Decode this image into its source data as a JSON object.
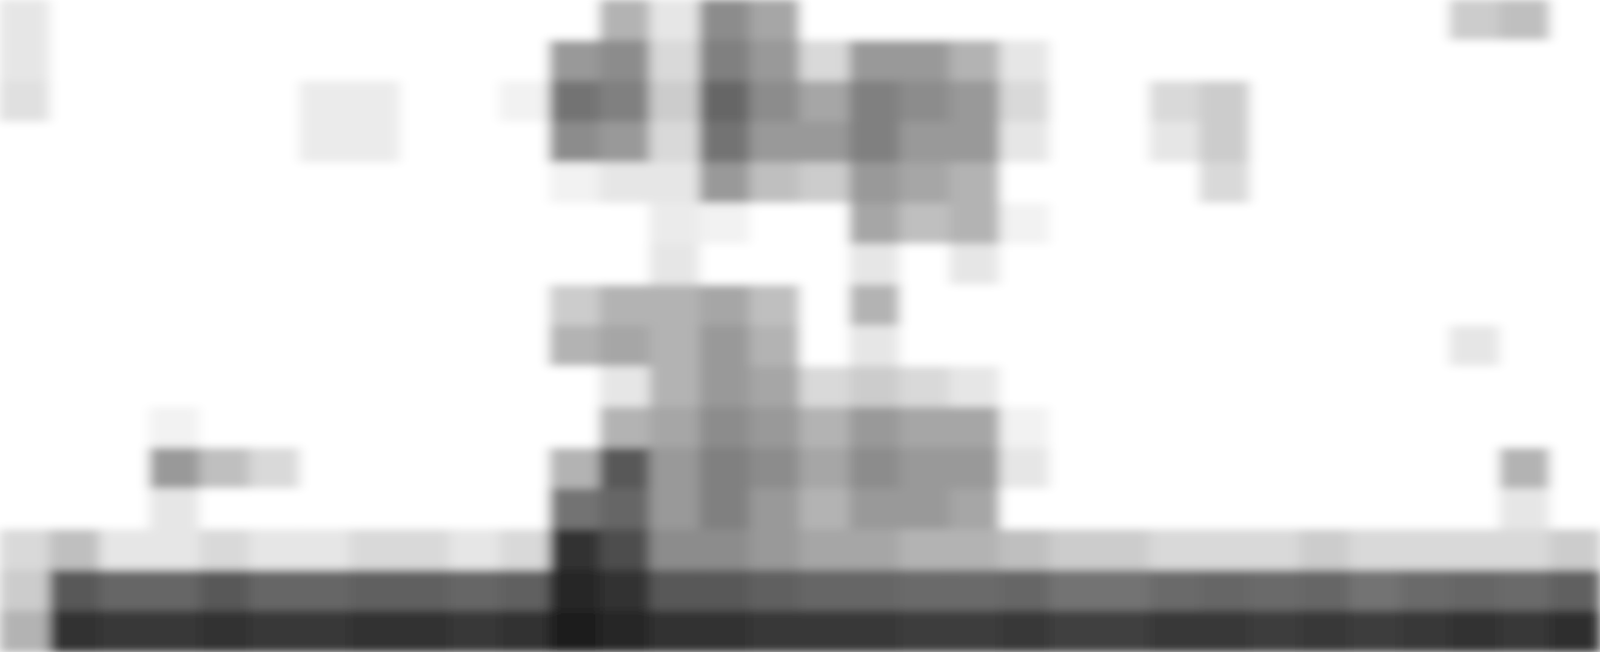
{
  "chart_data": {
    "type": "heatmap",
    "tick_labels": false,
    "color": "#000000",
    "zlim": [
      0,
      100
    ],
    "cells": [
      [
        10,
        0,
        0,
        0,
        0,
        0,
        0,
        0,
        0,
        0,
        0,
        0,
        30,
        10,
        45,
        35,
        0,
        0,
        0,
        0,
        0,
        0,
        0,
        0,
        0,
        0,
        0,
        0,
        0,
        20,
        25,
        0
      ],
      [
        10,
        0,
        0,
        0,
        0,
        0,
        0,
        0,
        0,
        0,
        0,
        40,
        45,
        15,
        50,
        40,
        15,
        40,
        40,
        30,
        10,
        0,
        0,
        0,
        0,
        0,
        0,
        0,
        0,
        0,
        0,
        0
      ],
      [
        12,
        0,
        0,
        0,
        0,
        0,
        8,
        8,
        0,
        0,
        5,
        55,
        50,
        20,
        60,
        45,
        35,
        50,
        45,
        40,
        15,
        0,
        0,
        15,
        20,
        0,
        0,
        0,
        0,
        0,
        0,
        0
      ],
      [
        0,
        0,
        0,
        0,
        0,
        0,
        8,
        8,
        0,
        0,
        0,
        45,
        40,
        15,
        55,
        40,
        40,
        50,
        40,
        40,
        10,
        0,
        0,
        10,
        20,
        0,
        0,
        0,
        0,
        0,
        0,
        0
      ],
      [
        0,
        0,
        0,
        0,
        0,
        0,
        0,
        0,
        0,
        0,
        0,
        5,
        10,
        10,
        40,
        25,
        20,
        40,
        35,
        30,
        0,
        0,
        0,
        0,
        15,
        0,
        0,
        0,
        0,
        0,
        0,
        0
      ],
      [
        0,
        0,
        0,
        0,
        0,
        0,
        0,
        0,
        0,
        0,
        0,
        0,
        0,
        8,
        5,
        0,
        0,
        35,
        25,
        30,
        5,
        0,
        0,
        0,
        0,
        0,
        0,
        0,
        0,
        0,
        0,
        0
      ],
      [
        0,
        0,
        0,
        0,
        0,
        0,
        0,
        0,
        0,
        0,
        0,
        0,
        0,
        10,
        0,
        0,
        0,
        10,
        0,
        10,
        0,
        0,
        0,
        0,
        0,
        0,
        0,
        0,
        0,
        0,
        0,
        0
      ],
      [
        0,
        0,
        0,
        0,
        0,
        0,
        0,
        0,
        0,
        0,
        0,
        20,
        30,
        30,
        35,
        25,
        0,
        30,
        0,
        0,
        0,
        0,
        0,
        0,
        0,
        0,
        0,
        0,
        0,
        0,
        0,
        0
      ],
      [
        0,
        0,
        0,
        0,
        0,
        0,
        0,
        0,
        0,
        0,
        0,
        30,
        35,
        30,
        40,
        30,
        0,
        10,
        0,
        0,
        0,
        0,
        0,
        0,
        0,
        0,
        0,
        0,
        0,
        10,
        0,
        0
      ],
      [
        0,
        0,
        0,
        0,
        0,
        0,
        0,
        0,
        0,
        0,
        0,
        0,
        10,
        30,
        40,
        35,
        15,
        20,
        15,
        10,
        0,
        0,
        0,
        0,
        0,
        0,
        0,
        0,
        0,
        0,
        0,
        0
      ],
      [
        0,
        0,
        0,
        5,
        0,
        0,
        0,
        0,
        0,
        0,
        0,
        0,
        30,
        35,
        45,
        40,
        30,
        40,
        35,
        35,
        5,
        0,
        0,
        0,
        0,
        0,
        0,
        0,
        0,
        0,
        0,
        0
      ],
      [
        0,
        0,
        0,
        40,
        25,
        15,
        0,
        0,
        0,
        0,
        0,
        30,
        65,
        40,
        50,
        45,
        35,
        45,
        40,
        40,
        10,
        0,
        0,
        0,
        0,
        0,
        0,
        0,
        0,
        0,
        30,
        0
      ],
      [
        0,
        0,
        0,
        10,
        0,
        0,
        0,
        0,
        0,
        0,
        0,
        55,
        60,
        40,
        50,
        40,
        30,
        40,
        40,
        35,
        0,
        0,
        0,
        0,
        0,
        0,
        0,
        0,
        0,
        0,
        10,
        0
      ],
      [
        15,
        25,
        10,
        10,
        15,
        10,
        10,
        15,
        15,
        10,
        15,
        80,
        70,
        45,
        45,
        40,
        35,
        35,
        30,
        30,
        25,
        20,
        20,
        15,
        15,
        15,
        20,
        15,
        15,
        15,
        15,
        20
      ],
      [
        20,
        65,
        60,
        60,
        65,
        60,
        60,
        62,
        62,
        60,
        62,
        85,
        80,
        65,
        65,
        62,
        60,
        60,
        58,
        58,
        60,
        55,
        55,
        58,
        60,
        58,
        60,
        55,
        58,
        60,
        58,
        62
      ],
      [
        30,
        80,
        78,
        78,
        80,
        78,
        78,
        80,
        80,
        78,
        80,
        88,
        85,
        80,
        80,
        78,
        78,
        78,
        76,
        76,
        78,
        75,
        75,
        78,
        78,
        76,
        78,
        76,
        78,
        80,
        78,
        82
      ]
    ]
  }
}
